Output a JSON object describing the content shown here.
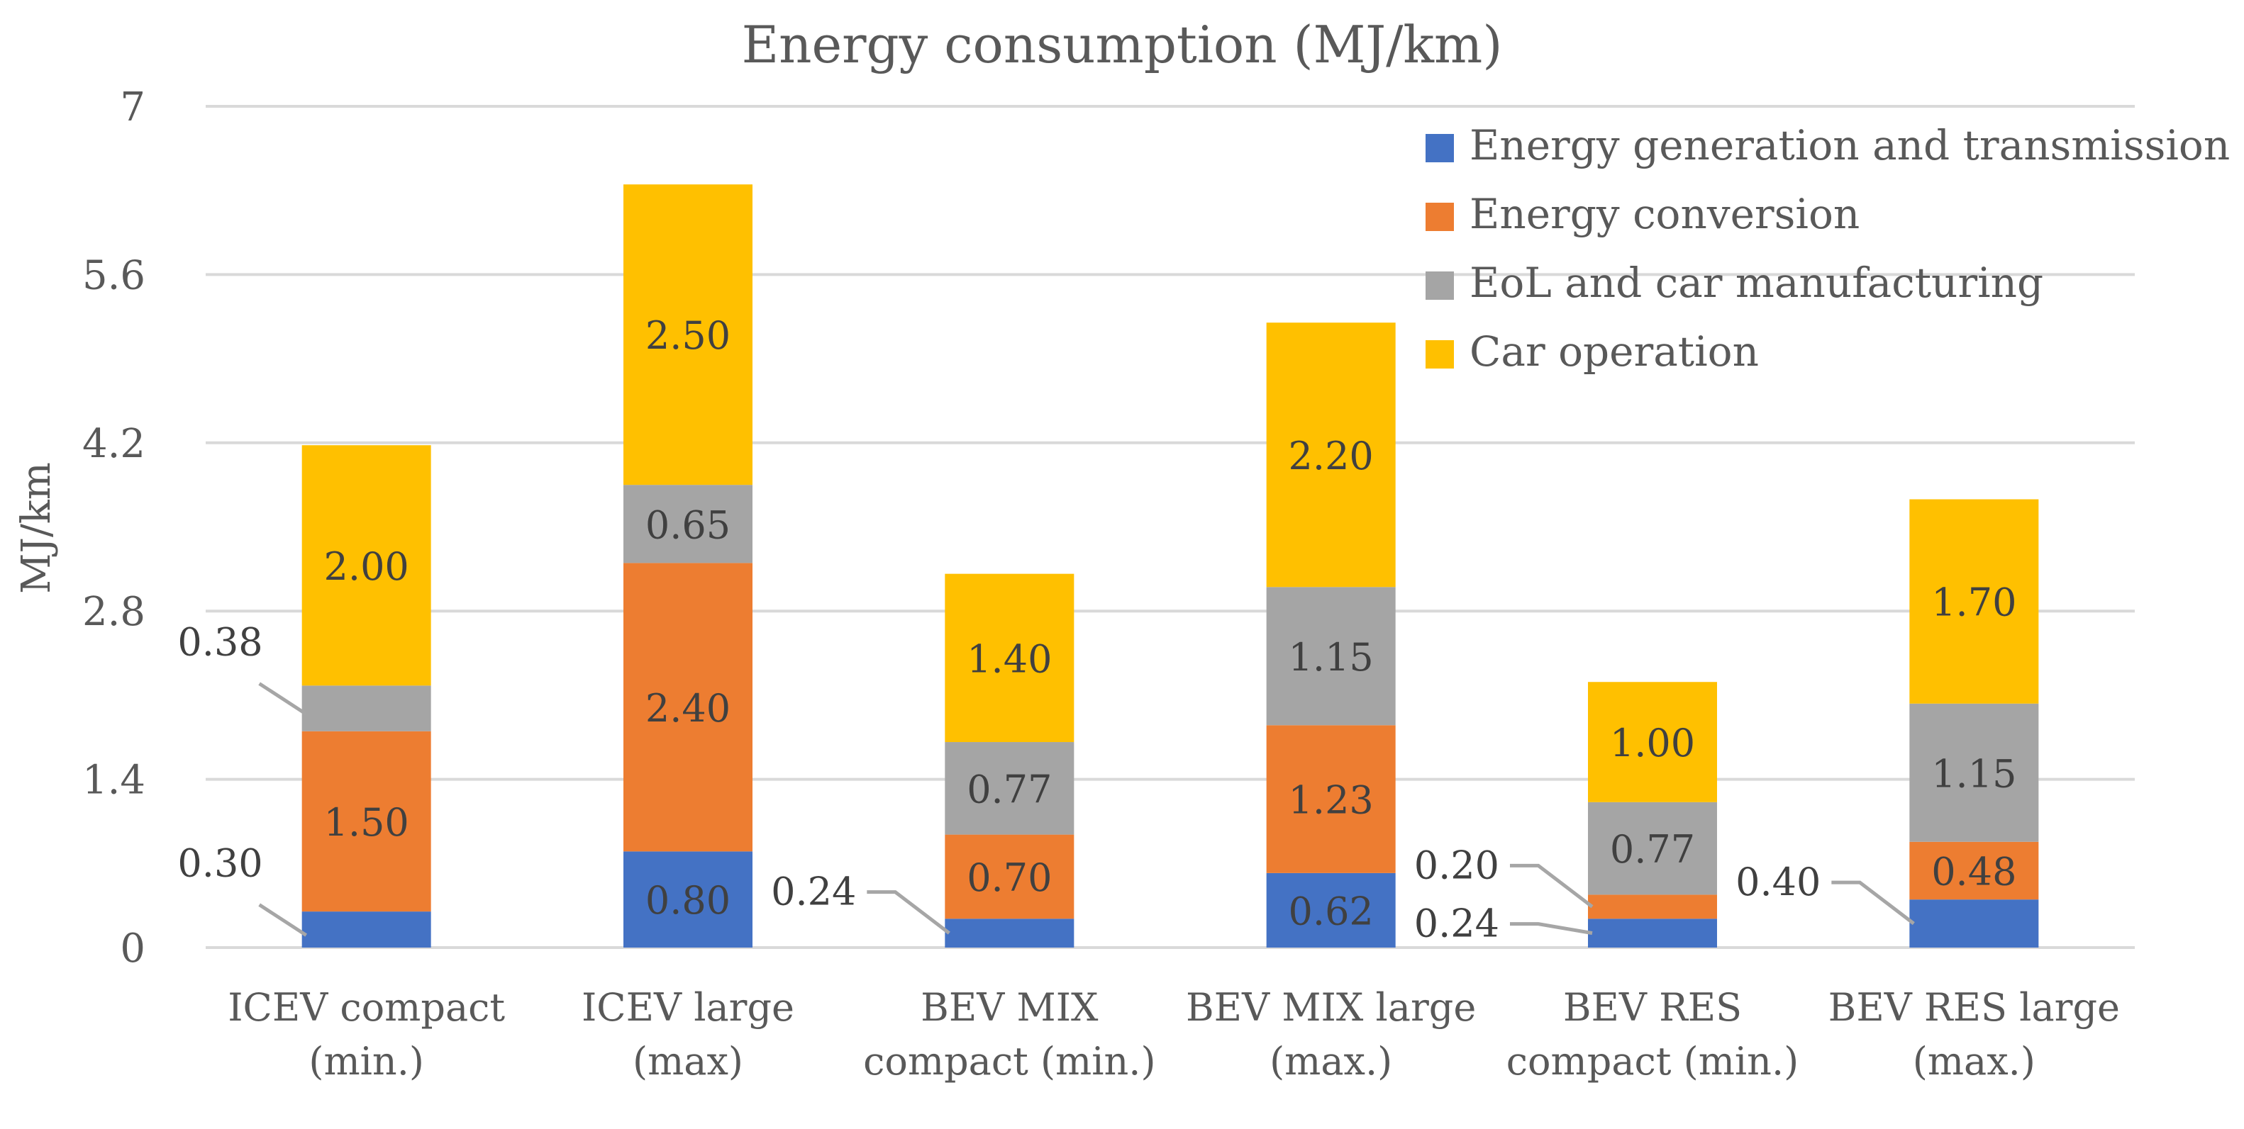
{
  "chart_data": {
    "type": "bar",
    "stacked": true,
    "title": "Energy consumption (MJ/km)",
    "xlabel": "",
    "ylabel": "MJ/km",
    "ylim": [
      0,
      7
    ],
    "yticks": [
      0,
      1.4,
      2.8,
      4.2,
      5.6,
      7
    ],
    "ytick_labels": [
      "0",
      "1.4",
      "2.8",
      "4.2",
      "5.6",
      "7"
    ],
    "grid": true,
    "legend_position": "top-right",
    "categories": [
      [
        "ICEV compact",
        "(min.)"
      ],
      [
        "ICEV large",
        "(max)"
      ],
      [
        "BEV MIX",
        "compact (min.)"
      ],
      [
        "BEV MIX large",
        "(max.)"
      ],
      [
        "BEV RES",
        "compact (min.)"
      ],
      [
        "BEV RES large",
        "(max.)"
      ]
    ],
    "series": [
      {
        "name": "Energy generation and transmission",
        "color": "#4472C4",
        "values": [
          0.3,
          0.8,
          0.24,
          0.62,
          0.24,
          0.4
        ],
        "labels": [
          "0.30",
          "0.80",
          "0.24",
          "0.62",
          "0.24",
          "0.40"
        ]
      },
      {
        "name": "Energy conversion",
        "color": "#ED7D31",
        "values": [
          1.5,
          2.4,
          0.7,
          1.23,
          0.2,
          0.48
        ],
        "labels": [
          "1.50",
          "2.40",
          "0.70",
          "1.23",
          "0.20",
          "0.48"
        ]
      },
      {
        "name": "EoL and car manufacturing",
        "color": "#A5A5A5",
        "values": [
          0.38,
          0.65,
          0.77,
          1.15,
          0.77,
          1.15
        ],
        "labels": [
          "0.38",
          "0.65",
          "0.77",
          "1.15",
          "0.77",
          "1.15"
        ]
      },
      {
        "name": "Car operation",
        "color": "#FFC000",
        "values": [
          2.0,
          2.5,
          1.4,
          2.2,
          1.0,
          1.7
        ],
        "labels": [
          "2.00",
          "2.50",
          "1.40",
          "2.20",
          "1.00",
          "1.70"
        ]
      }
    ]
  }
}
